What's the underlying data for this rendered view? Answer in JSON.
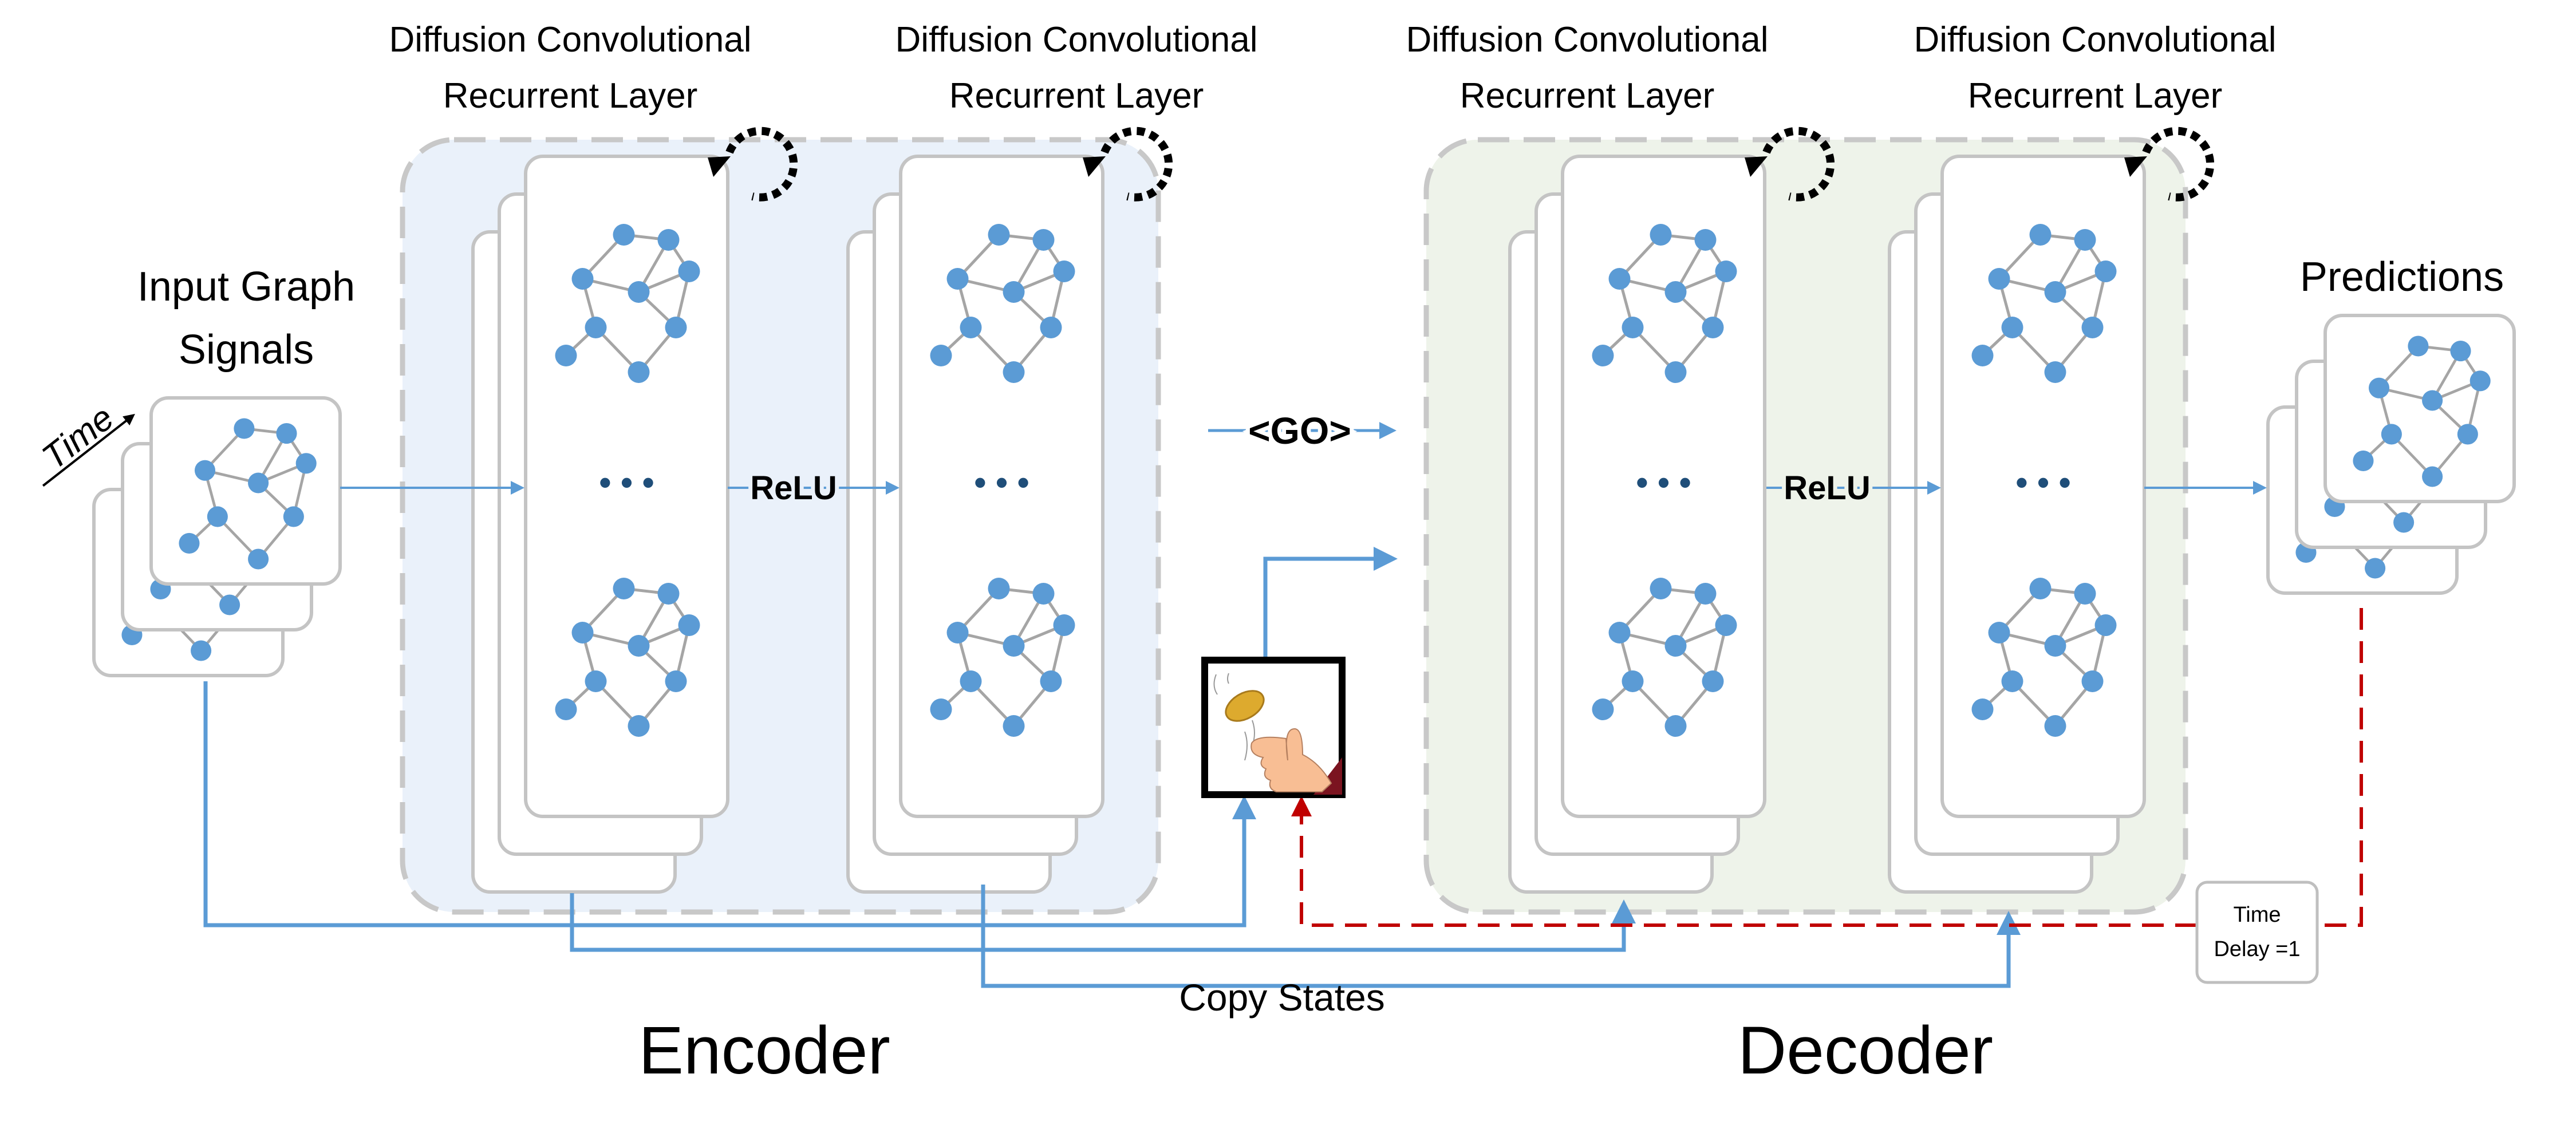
{
  "layer_title": {
    "line1": "Diffusion Convolutional",
    "line2": "Recurrent Layer"
  },
  "layers": [
    {
      "line1": "Diffusion Convolutional",
      "line2": "Recurrent Layer"
    },
    {
      "line1": "Diffusion Convolutional",
      "line2": "Recurrent Layer"
    },
    {
      "line1": "Diffusion Convolutional",
      "line2": "Recurrent Layer"
    },
    {
      "line1": "Diffusion Convolutional",
      "line2": "Recurrent Layer"
    }
  ],
  "input": {
    "line1": "Input Graph",
    "line2": "Signals",
    "time": "Time"
  },
  "predictions": {
    "label": "Predictions"
  },
  "activation": {
    "encoder": "ReLU",
    "decoder": "ReLU"
  },
  "ellipsis": "• • •",
  "go_token": "<GO>",
  "encoder_label": "Encoder",
  "decoder_label": "Decoder",
  "copy_states": "Copy States",
  "time_delay": {
    "line1": "Time",
    "line2": "Delay =1"
  },
  "icons": [
    "recurrent-loop-icon",
    "coin-flip-icon"
  ],
  "colors": {
    "node": "#5B9BD5",
    "edge": "#A5A5A5",
    "arrow": "#5B9BD5",
    "feedback": "#C00000",
    "encoder_bg": "#EAF1FA",
    "decoder_bg": "#EEF3EA"
  }
}
